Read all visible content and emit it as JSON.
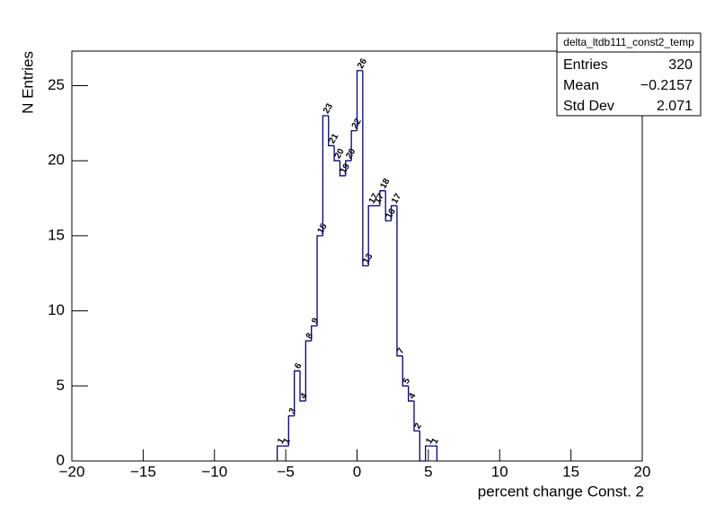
{
  "chart_data": {
    "type": "histogram",
    "x_label": "percent change Const. 2",
    "y_label": "N Entries",
    "bins": [
      -5.6,
      -5.2,
      -4.8,
      -4.4,
      -4.0,
      -3.6,
      -3.2,
      -2.8,
      -2.4,
      -2.0,
      -1.6,
      -1.2,
      -0.8,
      -0.4,
      0.0,
      0.4,
      0.8,
      1.2,
      1.6,
      2.0,
      2.4,
      2.8,
      3.2,
      3.6,
      4.0,
      4.4,
      4.8,
      5.2,
      5.6
    ],
    "values": [
      1,
      1,
      3,
      6,
      4,
      8,
      9,
      15,
      23,
      21,
      20,
      19,
      20,
      22,
      26,
      13,
      17,
      17,
      18,
      16,
      17,
      7,
      5,
      4,
      2,
      0,
      1,
      1
    ],
    "color": "#000080",
    "xlim": [
      -20,
      20
    ],
    "xticks": [
      {
        "value": -20,
        "label": "−20"
      },
      {
        "value": -15,
        "label": "−15"
      },
      {
        "value": -10,
        "label": "−10"
      },
      {
        "value": -5,
        "label": "−5"
      },
      0,
      5,
      10,
      15,
      20
    ],
    "ylim": [
      0,
      27.3
    ],
    "yticks": [
      0,
      5,
      10,
      15,
      20,
      25
    ],
    "stats": {
      "title": "delta_ltdb111_const2_temp",
      "rows": [
        [
          "Entries",
          "320"
        ],
        [
          "Mean",
          "−0.2157"
        ],
        [
          "Std Dev",
          "2.071"
        ]
      ]
    }
  }
}
